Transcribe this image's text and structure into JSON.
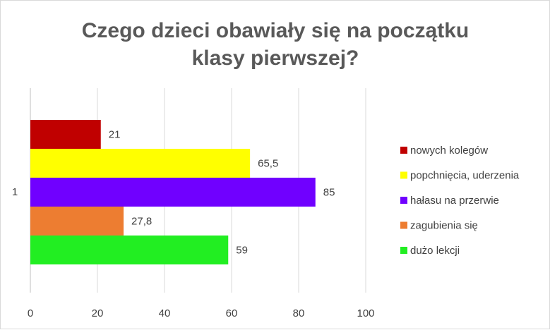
{
  "chart_data": {
    "type": "bar",
    "orientation": "horizontal",
    "title_lines": [
      "Czego dzieci obawiały się na początku",
      "klasy pierwszej?"
    ],
    "categories": [
      "1"
    ],
    "series": [
      {
        "name": "nowych kolegów",
        "values": [
          21
        ],
        "label": "21",
        "color": "#c00000"
      },
      {
        "name": "popchnięcia, uderzenia",
        "values": [
          65.5
        ],
        "label": "65,5",
        "color": "#ffff00"
      },
      {
        "name": "hałasu na przerwie",
        "values": [
          85
        ],
        "label": "85",
        "color": "#7000ff"
      },
      {
        "name": "zagubienia się",
        "values": [
          27.8
        ],
        "label": "27,8",
        "color": "#ed7d31"
      },
      {
        "name": "dużo lekcji",
        "values": [
          59
        ],
        "label": "59",
        "color": "#22ee22"
      }
    ],
    "xlim": [
      0,
      100
    ],
    "xticks": [
      "0",
      "20",
      "40",
      "60",
      "80",
      "100"
    ],
    "grid": true,
    "legend_position": "right"
  }
}
